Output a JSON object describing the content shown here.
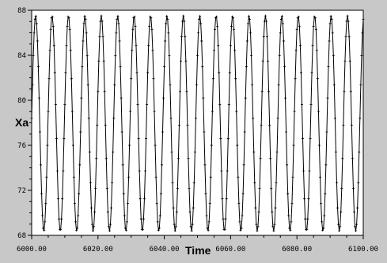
{
  "chart_data": {
    "type": "line",
    "title": "",
    "xlabel": "Time",
    "ylabel": "Xa",
    "xlim": [
      6000,
      6100
    ],
    "ylim": [
      68,
      88
    ],
    "x_ticks": [
      6000,
      6020,
      6040,
      6060,
      6080,
      6100
    ],
    "x_tick_labels": [
      "6000.00",
      "6020.00",
      "6040.00",
      "6060.00",
      "6080.00",
      "6100.00"
    ],
    "y_ticks": [
      68,
      72,
      76,
      80,
      84,
      88
    ],
    "y_tick_labels": [
      "68",
      "72",
      "76",
      "80",
      "84",
      "88"
    ],
    "grid": false,
    "series": [
      {
        "description": "periodic oscillation with point markers",
        "min": 68.4,
        "max": 87.5,
        "period": 4.95,
        "cycles": 20.2,
        "first_peak_x": 6001.2,
        "sample_step": 0.25,
        "marker": "plus"
      }
    ],
    "colors": {
      "background": "#c8c8c8",
      "plot_area": "#ffffff",
      "line": "#000000"
    }
  }
}
